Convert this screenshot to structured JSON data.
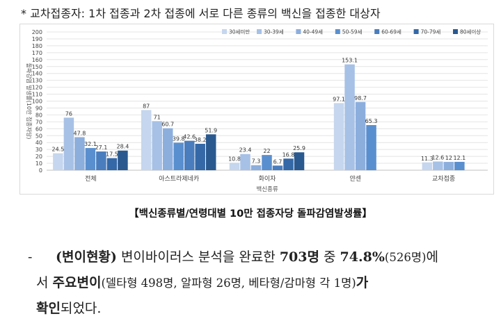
{
  "note": "* 교차접종자: 1차 접종과 2차 접종에 서로 다른 종류의 백신을 접종한 대상자",
  "caption": "【백신종류별/연령대별 10만 접종자당 돌파감염발생률】",
  "paragraph": {
    "dash": "-",
    "part1": "(변이현황)",
    "part2": " 변이바이러스 분석을 완료한 ",
    "part3": "703명",
    "part4": " 중 ",
    "part5": "74.8%",
    "part6": "(526명)",
    "part7": "에",
    "line2a": "서 ",
    "line2b": "주요변이",
    "line2c": "(델타형 498명, 알파형 26명, 베타형/감마형 각 1명)",
    "line2d": "가",
    "line3a": "확인",
    "line3b": "되었다."
  },
  "colors": {
    "series": [
      "#c5d6ee",
      "#a7c1e6",
      "#8caedd",
      "#5a8fcf",
      "#4a7dbd",
      "#3468a7",
      "#2a5990"
    ]
  },
  "chart_data": {
    "type": "bar",
    "xlabel": "백신종류",
    "ylabel": "돌파감염 발생률(10만 접종자당)",
    "ylim": [
      0,
      200
    ],
    "yticks": [
      0,
      10,
      20,
      30,
      40,
      50,
      60,
      70,
      80,
      90,
      100,
      110,
      120,
      130,
      140,
      150,
      160,
      170,
      180,
      190,
      200
    ],
    "grid": true,
    "legend_position": "top-right",
    "categories": [
      "전체",
      "아스트라제네카",
      "화이자",
      "얀센",
      "교차접종"
    ],
    "series": [
      {
        "name": "30세미만",
        "values": [
          24.5,
          87,
          10.8,
          97.1,
          11.3
        ]
      },
      {
        "name": "30-39세",
        "values": [
          76,
          71,
          23.4,
          153.1,
          12.6
        ]
      },
      {
        "name": "40-49세",
        "values": [
          47.8,
          60.7,
          7.3,
          98.7,
          12
        ]
      },
      {
        "name": "50-59세",
        "values": [
          32.1,
          39.8,
          22,
          65.3,
          12.1
        ]
      },
      {
        "name": "60-69세",
        "values": [
          27.1,
          42.6,
          6.7,
          null,
          null
        ]
      },
      {
        "name": "70-79세",
        "values": [
          17.5,
          38.2,
          16.8,
          null,
          null
        ]
      },
      {
        "name": "80세이상",
        "values": [
          28.4,
          51.9,
          25.9,
          null,
          null
        ]
      }
    ]
  }
}
